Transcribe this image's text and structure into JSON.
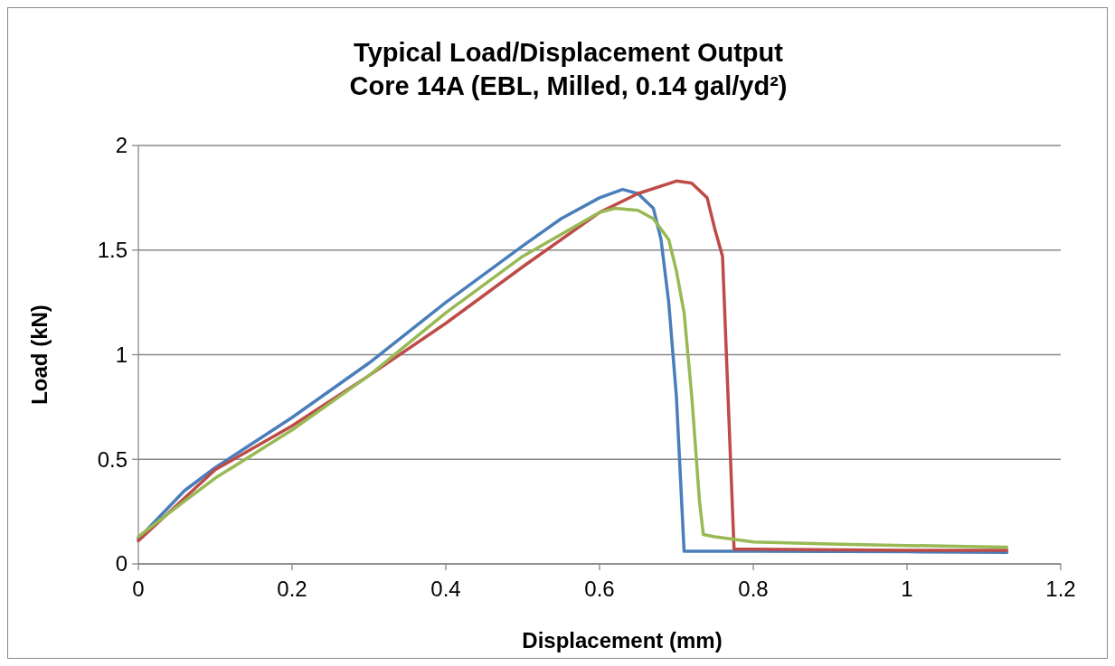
{
  "chart_data": {
    "type": "line",
    "title": "Typical Load/Displacement Output\nCore 14A  (EBL, Milled, 0.14 gal/yd²)",
    "xlabel": "Displacement (mm)",
    "ylabel": "Load (kN)",
    "xlim": [
      0,
      1.2
    ],
    "xticks": [
      0,
      0.2,
      0.4,
      0.6,
      0.8,
      1,
      1.2
    ],
    "ylim": [
      0,
      2
    ],
    "yticks": [
      0,
      0.5,
      1,
      1.5,
      2
    ],
    "grid": "y",
    "marker": "none",
    "line_style": "solid",
    "series": [
      {
        "color": "#4a7ebb",
        "x": [
          0,
          0.06,
          0.1,
          0.2,
          0.3,
          0.4,
          0.5,
          0.55,
          0.6,
          0.63,
          0.65,
          0.67,
          0.68,
          0.69,
          0.7,
          0.71,
          0.8,
          1,
          1.13
        ],
        "values": [
          0.12,
          0.35,
          0.46,
          0.7,
          0.96,
          1.25,
          1.52,
          1.65,
          1.75,
          1.79,
          1.77,
          1.7,
          1.55,
          1.25,
          0.8,
          0.06,
          0.06,
          0.058,
          0.055
        ]
      },
      {
        "color": "#be4b48",
        "x": [
          0,
          0.1,
          0.2,
          0.3,
          0.4,
          0.5,
          0.6,
          0.65,
          0.7,
          0.72,
          0.74,
          0.75,
          0.76,
          0.775,
          0.8,
          1,
          1.13
        ],
        "values": [
          0.11,
          0.45,
          0.66,
          0.9,
          1.15,
          1.42,
          1.68,
          1.77,
          1.83,
          1.82,
          1.75,
          1.6,
          1.47,
          0.07,
          0.07,
          0.065,
          0.065
        ]
      },
      {
        "color": "#98b954",
        "x": [
          0,
          0.06,
          0.1,
          0.2,
          0.3,
          0.4,
          0.5,
          0.6,
          0.62,
          0.65,
          0.67,
          0.69,
          0.7,
          0.71,
          0.72,
          0.73,
          0.735,
          0.75,
          0.77,
          0.8,
          0.9,
          1,
          1.13
        ],
        "values": [
          0.13,
          0.3,
          0.41,
          0.64,
          0.9,
          1.2,
          1.47,
          1.68,
          1.7,
          1.69,
          1.65,
          1.55,
          1.4,
          1.2,
          0.8,
          0.3,
          0.14,
          0.13,
          0.12,
          0.105,
          0.095,
          0.088,
          0.08
        ]
      }
    ]
  }
}
